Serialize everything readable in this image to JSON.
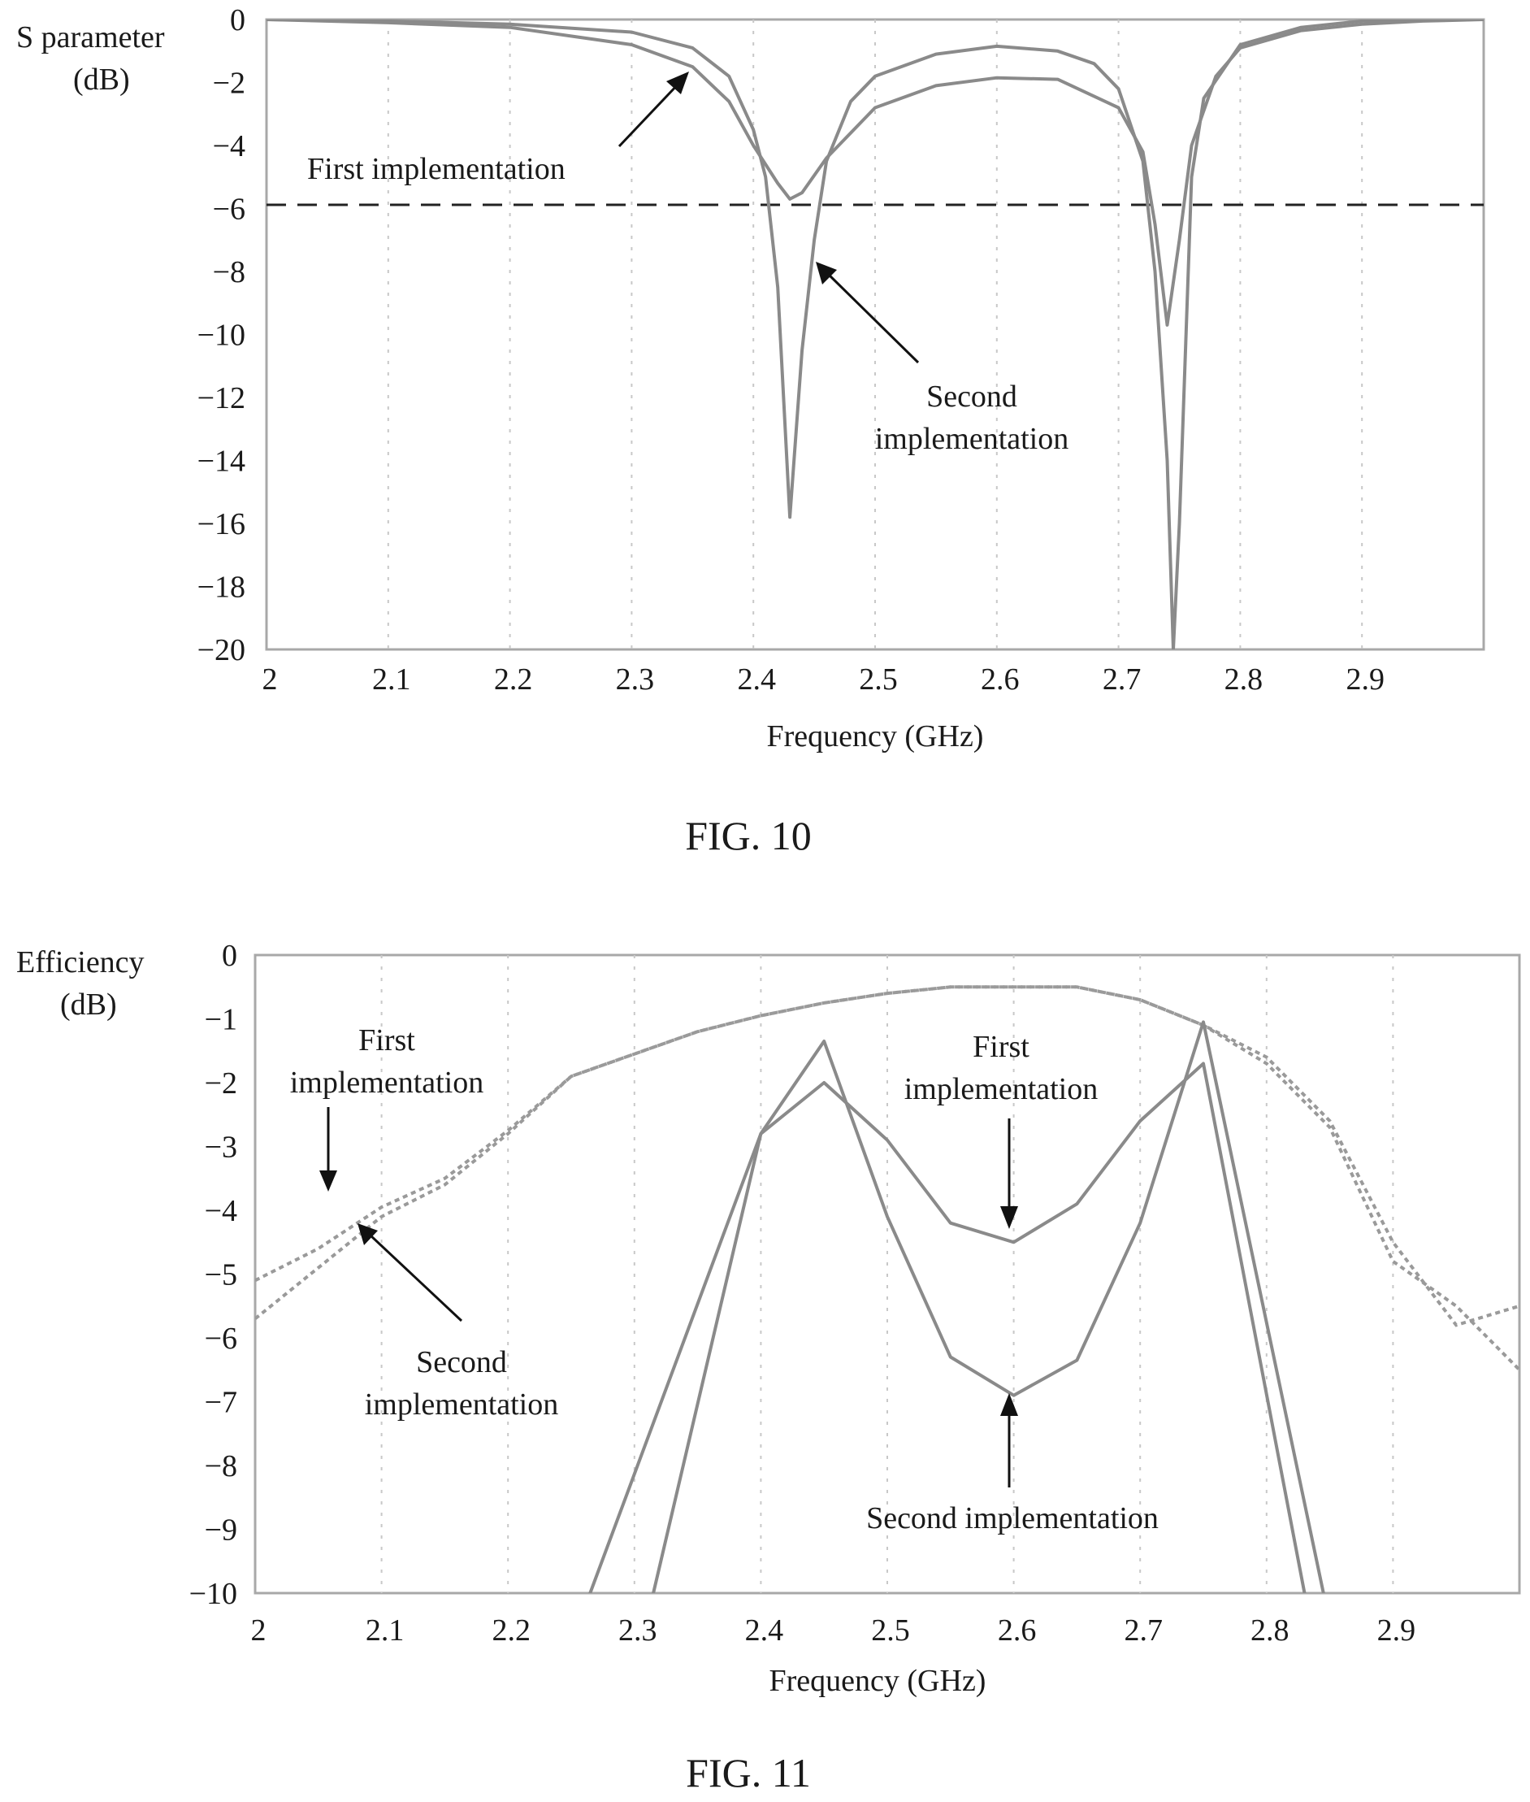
{
  "chart_data": [
    {
      "type": "line",
      "caption": "FIG. 10",
      "ylabel": "S parameter",
      "ylabel_unit": "(dB)",
      "xlabel": "Frequency (GHz)",
      "xlim": [
        2.0,
        3.0
      ],
      "ylim": [
        -20,
        0
      ],
      "x_ticks": [
        "2",
        "2.1",
        "2.2",
        "2.3",
        "2.4",
        "2.5",
        "2.6",
        "2.7",
        "2.8",
        "2.9"
      ],
      "y_ticks": [
        "0",
        "−2",
        "−4",
        "−6",
        "−8",
        "−10",
        "−12",
        "−14",
        "−16",
        "−18",
        "−20"
      ],
      "grid": "vertical dotted",
      "reference_line": {
        "y": -6,
        "style": "dashed"
      },
      "series": [
        {
          "style": "solid",
          "x": [
            2.0,
            2.1,
            2.2,
            2.3,
            2.35,
            2.38,
            2.4,
            2.42,
            2.43,
            2.44,
            2.46,
            2.5,
            2.55,
            2.6,
            2.65,
            2.7,
            2.72,
            2.73,
            2.74,
            2.75,
            2.76,
            2.78,
            2.8,
            2.85,
            2.9,
            2.95,
            3.0
          ],
          "y": [
            0.0,
            -0.1,
            -0.25,
            -0.8,
            -1.5,
            -2.6,
            -4.0,
            -5.2,
            -5.7,
            -5.5,
            -4.4,
            -2.8,
            -2.1,
            -1.85,
            -1.9,
            -2.8,
            -4.2,
            -6.5,
            -9.7,
            -7.0,
            -4.0,
            -1.8,
            -0.9,
            -0.35,
            -0.15,
            -0.05,
            0.0
          ]
        },
        {
          "style": "solid",
          "x": [
            2.0,
            2.1,
            2.2,
            2.3,
            2.35,
            2.38,
            2.4,
            2.41,
            2.42,
            2.43,
            2.44,
            2.45,
            2.46,
            2.48,
            2.5,
            2.55,
            2.6,
            2.65,
            2.68,
            2.7,
            2.72,
            2.73,
            2.74,
            2.745,
            2.75,
            2.76,
            2.77,
            2.8,
            2.85,
            2.9,
            2.95,
            3.0
          ],
          "y": [
            0.0,
            -0.05,
            -0.15,
            -0.4,
            -0.9,
            -1.8,
            -3.5,
            -5.0,
            -8.5,
            -15.8,
            -10.5,
            -7.0,
            -4.5,
            -2.6,
            -1.8,
            -1.1,
            -0.85,
            -1.0,
            -1.4,
            -2.2,
            -4.5,
            -8.0,
            -14.0,
            -20.0,
            -16.0,
            -5.0,
            -2.5,
            -0.8,
            -0.25,
            -0.05,
            0.0,
            0.0
          ]
        }
      ],
      "annotations": [
        {
          "text": "First implementation"
        },
        {
          "text_lines": [
            "Second",
            "implementation"
          ]
        }
      ]
    },
    {
      "type": "line",
      "caption": "FIG. 11",
      "ylabel": "Efficiency",
      "ylabel_unit": "(dB)",
      "xlabel": "Frequency (GHz)",
      "xlim": [
        2.0,
        3.0
      ],
      "ylim": [
        -10,
        0
      ],
      "x_ticks": [
        "2",
        "2.1",
        "2.2",
        "2.3",
        "2.4",
        "2.5",
        "2.6",
        "2.7",
        "2.8",
        "2.9"
      ],
      "y_ticks": [
        "0",
        "−1",
        "−2",
        "−3",
        "−4",
        "−5",
        "−6",
        "−7",
        "−8",
        "−9",
        "−10"
      ],
      "grid": "vertical dotted",
      "series": [
        {
          "style": "dashed",
          "x": [
            2.0,
            2.05,
            2.1,
            2.15,
            2.2,
            2.25,
            2.3,
            2.35,
            2.4,
            2.45,
            2.5,
            2.55,
            2.6,
            2.65,
            2.7,
            2.75,
            2.8,
            2.85,
            2.9,
            2.95,
            3.0
          ],
          "y": [
            -5.7,
            -4.9,
            -4.1,
            -3.6,
            -2.8,
            -1.9,
            -1.55,
            -1.2,
            -0.95,
            -0.75,
            -0.6,
            -0.5,
            -0.5,
            -0.5,
            -0.7,
            -1.1,
            -1.6,
            -2.6,
            -4.5,
            -5.8,
            -5.5
          ]
        },
        {
          "style": "dashed",
          "x": [
            2.0,
            2.05,
            2.1,
            2.15,
            2.2,
            2.25,
            2.3,
            2.35,
            2.4,
            2.45,
            2.5,
            2.55,
            2.6,
            2.65,
            2.7,
            2.75,
            2.8,
            2.85,
            2.9,
            2.95,
            3.0
          ],
          "y": [
            -5.1,
            -4.6,
            -3.95,
            -3.5,
            -2.75,
            -1.9,
            -1.55,
            -1.2,
            -0.95,
            -0.75,
            -0.6,
            -0.5,
            -0.5,
            -0.5,
            -0.7,
            -1.1,
            -1.7,
            -2.7,
            -4.8,
            -5.5,
            -6.5
          ]
        },
        {
          "style": "solid",
          "x": [
            2.265,
            2.4,
            2.45,
            2.5,
            2.55,
            2.6,
            2.65,
            2.7,
            2.75,
            2.83
          ],
          "y": [
            -10.0,
            -2.8,
            -2.0,
            -2.9,
            -4.2,
            -4.5,
            -3.9,
            -2.6,
            -1.7,
            -10.0
          ]
        },
        {
          "style": "solid",
          "x": [
            2.315,
            2.4,
            2.45,
            2.5,
            2.55,
            2.6,
            2.65,
            2.7,
            2.75,
            2.845
          ],
          "y": [
            -10.0,
            -2.8,
            -1.35,
            -4.1,
            -6.3,
            -6.9,
            -6.35,
            -4.2,
            -1.05,
            -10.0
          ]
        }
      ],
      "annotations": [
        {
          "text_lines": [
            "First",
            "implementation"
          ]
        },
        {
          "text_lines": [
            "Second",
            "implementation"
          ]
        },
        {
          "text_lines": [
            "First",
            "implementation"
          ]
        },
        {
          "text": "Second implementation"
        }
      ]
    }
  ]
}
